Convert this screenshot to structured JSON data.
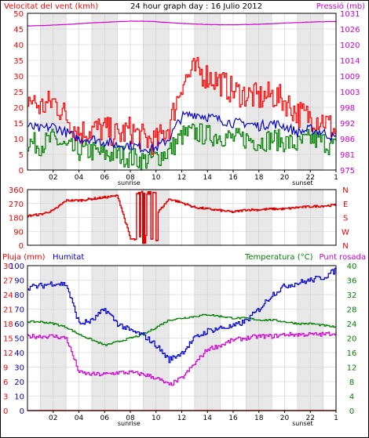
{
  "header": {
    "left_title": "Velocitat del vent (kmh)",
    "center_title": "24 hour graph day : 16 Julio 2012",
    "right_title": "Pressió (mb)"
  },
  "panel3_header": {
    "rain": "Pluja (mm)",
    "humidity": "Humitat",
    "temperature": "Temperatura (°C)",
    "dewpoint": "Punt rosada"
  },
  "colors": {
    "wind_speed": "#ff0000",
    "wind_gust_avg": "#0000cc",
    "wind_low": "#008000",
    "pressure": "#d000d0",
    "direction": "#e00000",
    "humidity": "#0000cc",
    "temperature": "#008000",
    "dewpoint": "#d000d0",
    "rain": "#ff0000",
    "grid": "#cccccc",
    "band": "#e8e8e8"
  },
  "x_axis": {
    "ticks": [
      "02",
      "04",
      "06",
      "08",
      "10",
      "12",
      "14",
      "16",
      "18",
      "20",
      "22",
      "1"
    ],
    "sunrise_label": "sunrise",
    "sunset_label": "sunset",
    "sunrise_hour": 7.9,
    "sunset_hour": 21.4
  },
  "chart_data": [
    {
      "type": "line",
      "panel": "wind-pressure",
      "title": "24 hour graph day : 16 Julio 2012",
      "xlabel": "",
      "ylabel": "Velocitat del vent (kmh)",
      "ylim": [
        0,
        50
      ],
      "y_ticks": [
        "0",
        "5",
        "10",
        "15",
        "20",
        "25",
        "30",
        "35",
        "40",
        "45",
        "50"
      ],
      "y2label": "Pressió (mb)",
      "y2lim": [
        975,
        1031
      ],
      "y2_ticks": [
        "975",
        "981",
        "986",
        "992",
        "998",
        "1003",
        "1009",
        "1014",
        "1020",
        "1026",
        "1031"
      ],
      "x_hours": [
        0,
        1,
        2,
        3,
        4,
        5,
        6,
        7,
        8,
        9,
        10,
        11,
        12,
        13,
        14,
        15,
        16,
        17,
        18,
        19,
        20,
        21,
        22,
        23,
        24
      ],
      "series": [
        {
          "key": "gust",
          "values": [
            23,
            20,
            22,
            17,
            12,
            13,
            13,
            11,
            13,
            10,
            9,
            14,
            28,
            32,
            30,
            28,
            25,
            24,
            23,
            24,
            22,
            18,
            17,
            16,
            12
          ]
        },
        {
          "key": "avg",
          "values": [
            14,
            13,
            14,
            12,
            10,
            10,
            9,
            8,
            8,
            7,
            7,
            10,
            17,
            18,
            17,
            16,
            15,
            15,
            14,
            15,
            14,
            12,
            13,
            12,
            10
          ]
        },
        {
          "key": "low",
          "values": [
            9,
            8,
            10,
            7,
            6,
            6,
            5,
            5,
            4,
            3,
            4,
            6,
            11,
            12,
            11,
            11,
            10,
            10,
            9,
            10,
            9,
            8,
            10,
            9,
            7
          ]
        },
        {
          "key": "pressure",
          "values": [
            1026.5,
            1026.6,
            1026.8,
            1027.0,
            1027.3,
            1027.6,
            1027.8,
            1028.0,
            1028.2,
            1028.2,
            1028.0,
            1027.7,
            1027.4,
            1027.2,
            1027.0,
            1026.9,
            1026.9,
            1027.0,
            1027.1,
            1027.3,
            1027.5,
            1027.7,
            1027.9,
            1028.0,
            1028.1
          ]
        }
      ]
    },
    {
      "type": "line",
      "panel": "wind-direction",
      "ylim": [
        0,
        360
      ],
      "y_ticks": [
        "0",
        "90",
        "180",
        "270",
        "360"
      ],
      "compass": [
        "N",
        "W",
        "S",
        "E",
        "N"
      ],
      "x_hours": [
        0,
        1,
        2,
        3,
        4,
        5,
        6,
        7,
        8,
        9,
        10,
        11,
        12,
        13,
        14,
        15,
        16,
        17,
        18,
        19,
        20,
        21,
        22,
        23,
        24
      ],
      "series": [
        {
          "key": "direction",
          "values": [
            190,
            200,
            225,
            290,
            290,
            300,
            310,
            320,
            40,
            30,
            200,
            300,
            275,
            245,
            235,
            225,
            215,
            230,
            230,
            235,
            235,
            245,
            250,
            255,
            260
          ]
        }
      ]
    },
    {
      "type": "line",
      "panel": "temp-humidity-rain",
      "y_rain_ticks": [
        "0",
        "3",
        "6",
        "9",
        "12",
        "15",
        "18",
        "21",
        "24",
        "27",
        "30"
      ],
      "ylim_rain": [
        0,
        30
      ],
      "y_hum_ticks": [
        "0",
        "10",
        "20",
        "30",
        "40",
        "50",
        "60",
        "70",
        "80",
        "90",
        "100"
      ],
      "ylim_hum": [
        0,
        100
      ],
      "y_temp_ticks": [
        "0",
        "4",
        "8",
        "12",
        "16",
        "20",
        "24",
        "28",
        "32",
        "36",
        "40"
      ],
      "ylim_temp": [
        0,
        40
      ],
      "x_hours": [
        0,
        1,
        2,
        3,
        4,
        5,
        6,
        7,
        8,
        9,
        10,
        11,
        12,
        13,
        14,
        15,
        16,
        17,
        18,
        19,
        20,
        21,
        22,
        23,
        24
      ],
      "series": [
        {
          "key": "humidity",
          "values": [
            85,
            86,
            88,
            87,
            60,
            62,
            70,
            60,
            55,
            52,
            45,
            35,
            40,
            50,
            55,
            57,
            58,
            62,
            70,
            80,
            86,
            88,
            90,
            92,
            97
          ]
        },
        {
          "key": "temperature",
          "values": [
            24.5,
            24.5,
            24,
            23,
            21,
            19.5,
            18,
            19,
            20,
            21,
            23,
            25,
            25.5,
            26,
            26.5,
            26,
            25.5,
            25.5,
            25,
            25,
            24.5,
            24,
            24,
            23.5,
            23
          ]
        },
        {
          "key": "dewpoint",
          "values": [
            20.5,
            20.5,
            20.5,
            20,
            10.5,
            10,
            10,
            10.5,
            10.5,
            10,
            9,
            7,
            9,
            13,
            17,
            18,
            19.5,
            20,
            20.5,
            20.5,
            21,
            21,
            21,
            21,
            21.5
          ]
        },
        {
          "key": "rain",
          "values": [
            0,
            0,
            0,
            0,
            0,
            0,
            0,
            0,
            0,
            0,
            0,
            0,
            0,
            0,
            0,
            0,
            0,
            0,
            0,
            0,
            0,
            0,
            0,
            0,
            0
          ]
        }
      ]
    }
  ]
}
